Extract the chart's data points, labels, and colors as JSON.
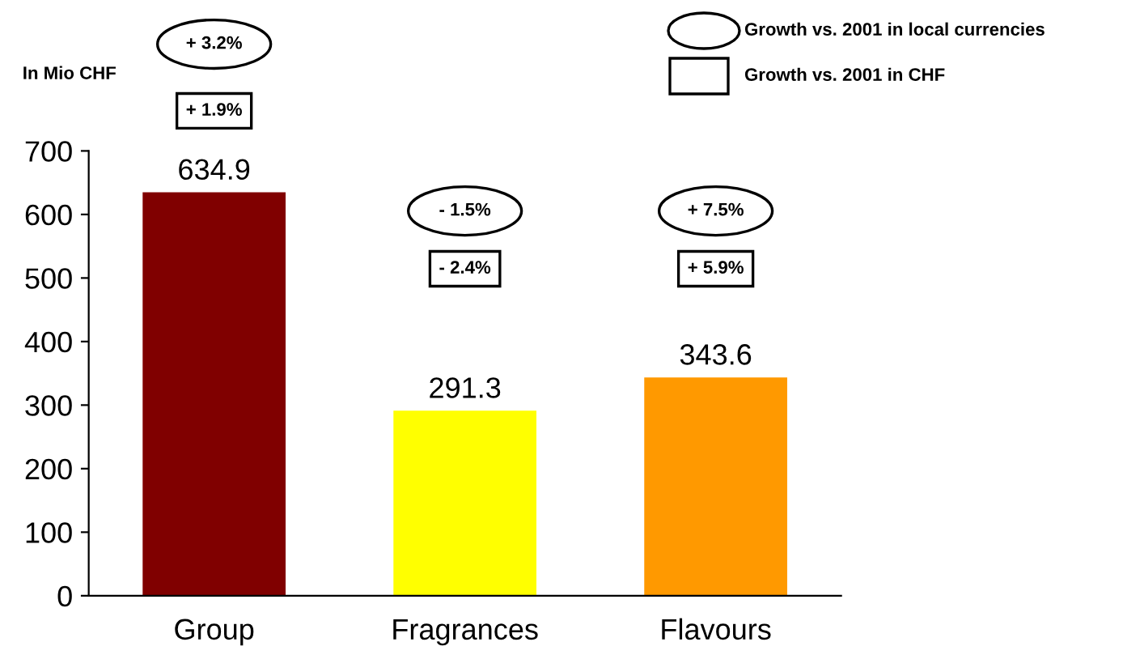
{
  "chart_data": {
    "type": "bar",
    "ylabel": "In Mio CHF",
    "categories": [
      "Group",
      "Fragrances",
      "Flavours"
    ],
    "values": [
      634.9,
      291.3,
      343.6
    ],
    "colors": [
      "#800000",
      "#ffff00",
      "#ff9900"
    ],
    "ylim": [
      0,
      700
    ],
    "yticks": [
      0,
      100,
      200,
      300,
      400,
      500,
      600,
      700
    ],
    "data_labels": true,
    "grid": false,
    "annotations": [
      "Growth vs. 2001 in local currencies",
      "Growth vs. 2001 in CHF",
      "+ 3.2%",
      "+ 1.9%",
      "- 1.5%",
      "- 2.4%",
      "+ 7.5%",
      "+ 5.9%"
    ]
  }
}
